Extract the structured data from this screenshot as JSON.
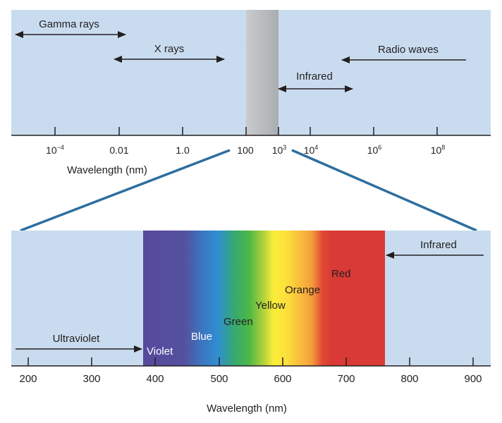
{
  "top_panel": {
    "ticks": [
      {
        "base": "10",
        "sup": "−4"
      },
      {
        "base": "0.01",
        "sup": ""
      },
      {
        "base": "1.0",
        "sup": ""
      },
      {
        "base": "100",
        "sup": ""
      },
      {
        "base": "10",
        "sup": "3"
      },
      {
        "base": "10",
        "sup": "4"
      },
      {
        "base": "10",
        "sup": "6"
      },
      {
        "base": "10",
        "sup": "8"
      }
    ],
    "axis_label": "Wavelength (nm)",
    "bands": {
      "gamma": "Gamma rays",
      "xray": "X rays",
      "infrared": "Infrared",
      "radio": "Radio waves"
    }
  },
  "bottom_panel": {
    "ticks": [
      "200",
      "300",
      "400",
      "500",
      "600",
      "700",
      "800",
      "900"
    ],
    "axis_label": "Wavelength (nm)",
    "ultraviolet": "Ultraviolet",
    "infrared": "Infrared",
    "colors": {
      "violet": "Violet",
      "blue": "Blue",
      "green": "Green",
      "yellow": "Yellow",
      "orange": "Orange",
      "red": "Red"
    }
  },
  "colors": {
    "panel_bg": "#c9dcef",
    "connector": "#2e6e9e",
    "visible_band": "#b9bcbf",
    "red_band": "#d93a35",
    "violet_band": "#564a9c"
  }
}
